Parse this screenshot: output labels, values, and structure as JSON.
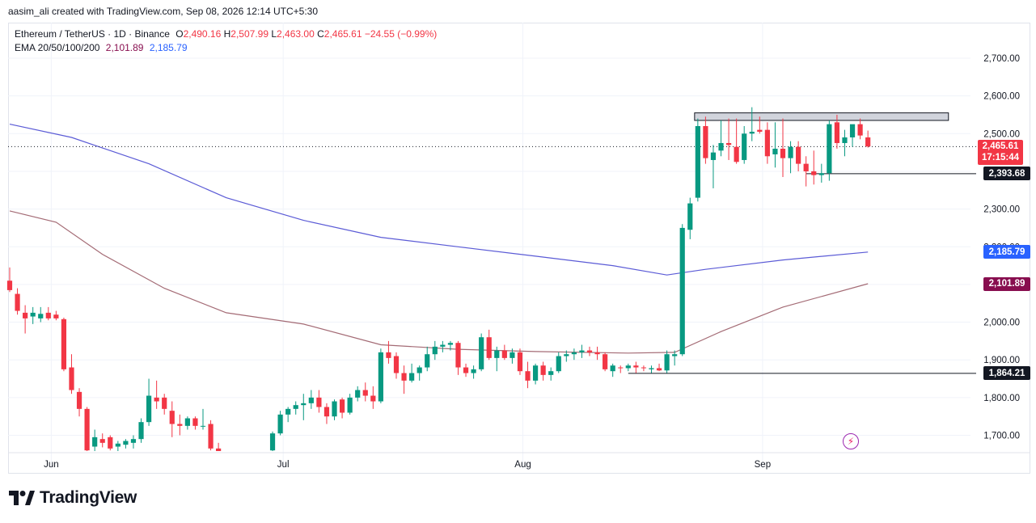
{
  "header": {
    "credit": "aasim_ali created with TradingView.com, Sep 08, 2026 12:14 UTC+5:30"
  },
  "legend": {
    "symbol": "Ethereum / TetherUS · 1D · Binance",
    "o_label": "O",
    "o_value": "2,490.16",
    "h_label": "H",
    "h_value": "2,507.99",
    "l_label": "L",
    "l_value": "2,463.00",
    "c_label": "C",
    "c_value": "2,465.61",
    "change": "−24.55 (−0.99%)",
    "ema_label": "EMA 20/50/100/200",
    "ema_value_1": "2,101.89",
    "ema_value_2": "2,185.79"
  },
  "price_tags": {
    "last_price": "2,465.61",
    "countdown": "17:15:44",
    "support_level": "2,393.68",
    "ema_blue": "2,185.79",
    "ema_maroon": "2,101.89",
    "lower_level": "1,864.21"
  },
  "logo": {
    "text": "TradingView"
  },
  "colors": {
    "up": "#089981",
    "down": "#f23645",
    "ema_long": "#5b5bd6",
    "ema_short": "#a46b75",
    "tag_blue": "#2962ff",
    "tag_maroon": "#880e4f",
    "tag_black": "#131722",
    "grid": "#f0f3fa"
  },
  "chart_data": {
    "type": "candlestick",
    "title": "Ethereum / TetherUS · 1D · Binance",
    "y_ticks": [
      1700,
      1800,
      1900,
      2000,
      2100,
      2200,
      2300,
      2400,
      2500,
      2600,
      2700
    ],
    "y_tick_labels": [
      "1,700.00",
      "1,800.00",
      "1,900.00",
      "2,000.00",
      "",
      "2,200.00",
      "2,300.00",
      "",
      "2,500.00",
      "2,600.00",
      "2,700.00"
    ],
    "ylim": [
      1655,
      2765
    ],
    "x_labels": [
      {
        "label": "Jun",
        "day": 6
      },
      {
        "label": "Jul",
        "day": 36
      },
      {
        "label": "Aug",
        "day": 67
      },
      {
        "label": "Sep",
        "day": 98
      }
    ],
    "candles": [
      {
        "d": 0,
        "o": 2110,
        "h": 2145,
        "l": 2080,
        "c": 2085
      },
      {
        "d": 1,
        "o": 2075,
        "h": 2090,
        "l": 2020,
        "c": 2030
      },
      {
        "d": 2,
        "o": 2025,
        "h": 2045,
        "l": 1970,
        "c": 2010
      },
      {
        "d": 3,
        "o": 2015,
        "h": 2040,
        "l": 1995,
        "c": 2025
      },
      {
        "d": 4,
        "o": 2010,
        "h": 2040,
        "l": 2000,
        "c": 2022
      },
      {
        "d": 5,
        "o": 2025,
        "h": 2040,
        "l": 2005,
        "c": 2010
      },
      {
        "d": 6,
        "o": 2020,
        "h": 2030,
        "l": 2005,
        "c": 2010
      },
      {
        "d": 7,
        "o": 2008,
        "h": 2012,
        "l": 1870,
        "c": 1875
      },
      {
        "d": 8,
        "o": 1880,
        "h": 1915,
        "l": 1810,
        "c": 1820
      },
      {
        "d": 9,
        "o": 1815,
        "h": 1825,
        "l": 1750,
        "c": 1770
      },
      {
        "d": 10,
        "o": 1770,
        "h": 1775,
        "l": 1655,
        "c": 1660
      },
      {
        "d": 11,
        "o": 1670,
        "h": 1715,
        "l": 1655,
        "c": 1695
      },
      {
        "d": 12,
        "o": 1690,
        "h": 1705,
        "l": 1668,
        "c": 1680
      },
      {
        "d": 13,
        "o": 1695,
        "h": 1700,
        "l": 1660,
        "c": 1665
      },
      {
        "d": 14,
        "o": 1670,
        "h": 1685,
        "l": 1650,
        "c": 1678
      },
      {
        "d": 15,
        "o": 1675,
        "h": 1690,
        "l": 1665,
        "c": 1685
      },
      {
        "d": 16,
        "o": 1680,
        "h": 1700,
        "l": 1665,
        "c": 1690
      },
      {
        "d": 17,
        "o": 1690,
        "h": 1745,
        "l": 1680,
        "c": 1735
      },
      {
        "d": 18,
        "o": 1735,
        "h": 1850,
        "l": 1725,
        "c": 1805
      },
      {
        "d": 19,
        "o": 1800,
        "h": 1845,
        "l": 1770,
        "c": 1790
      },
      {
        "d": 20,
        "o": 1800,
        "h": 1810,
        "l": 1755,
        "c": 1770
      },
      {
        "d": 21,
        "o": 1765,
        "h": 1790,
        "l": 1695,
        "c": 1730
      },
      {
        "d": 22,
        "o": 1730,
        "h": 1755,
        "l": 1700,
        "c": 1725
      },
      {
        "d": 23,
        "o": 1725,
        "h": 1750,
        "l": 1715,
        "c": 1745
      },
      {
        "d": 24,
        "o": 1745,
        "h": 1750,
        "l": 1715,
        "c": 1725
      },
      {
        "d": 25,
        "o": 1725,
        "h": 1770,
        "l": 1715,
        "c": 1725
      },
      {
        "d": 26,
        "o": 1730,
        "h": 1740,
        "l": 1660,
        "c": 1665
      },
      {
        "d": 27,
        "o": 1665,
        "h": 1680,
        "l": 1655,
        "c": 1658
      },
      {
        "d": 34,
        "o": 1660,
        "h": 1710,
        "l": 1658,
        "c": 1705
      },
      {
        "d": 35,
        "o": 1705,
        "h": 1765,
        "l": 1700,
        "c": 1755
      },
      {
        "d": 36,
        "o": 1755,
        "h": 1775,
        "l": 1735,
        "c": 1770
      },
      {
        "d": 37,
        "o": 1770,
        "h": 1790,
        "l": 1755,
        "c": 1780
      },
      {
        "d": 38,
        "o": 1780,
        "h": 1810,
        "l": 1740,
        "c": 1785
      },
      {
        "d": 39,
        "o": 1785,
        "h": 1820,
        "l": 1770,
        "c": 1800
      },
      {
        "d": 40,
        "o": 1800,
        "h": 1820,
        "l": 1760,
        "c": 1775
      },
      {
        "d": 41,
        "o": 1775,
        "h": 1785,
        "l": 1730,
        "c": 1750
      },
      {
        "d": 42,
        "o": 1750,
        "h": 1795,
        "l": 1740,
        "c": 1790
      },
      {
        "d": 43,
        "o": 1795,
        "h": 1800,
        "l": 1745,
        "c": 1760
      },
      {
        "d": 44,
        "o": 1760,
        "h": 1810,
        "l": 1755,
        "c": 1800
      },
      {
        "d": 45,
        "o": 1800,
        "h": 1830,
        "l": 1790,
        "c": 1820
      },
      {
        "d": 46,
        "o": 1820,
        "h": 1840,
        "l": 1790,
        "c": 1805
      },
      {
        "d": 47,
        "o": 1805,
        "h": 1830,
        "l": 1770,
        "c": 1790
      },
      {
        "d": 48,
        "o": 1790,
        "h": 1930,
        "l": 1785,
        "c": 1920
      },
      {
        "d": 49,
        "o": 1920,
        "h": 1950,
        "l": 1890,
        "c": 1905
      },
      {
        "d": 50,
        "o": 1910,
        "h": 1920,
        "l": 1850,
        "c": 1865
      },
      {
        "d": 51,
        "o": 1865,
        "h": 1885,
        "l": 1810,
        "c": 1845
      },
      {
        "d": 52,
        "o": 1845,
        "h": 1890,
        "l": 1840,
        "c": 1865
      },
      {
        "d": 53,
        "o": 1865,
        "h": 1885,
        "l": 1845,
        "c": 1880
      },
      {
        "d": 54,
        "o": 1880,
        "h": 1935,
        "l": 1870,
        "c": 1915
      },
      {
        "d": 55,
        "o": 1915,
        "h": 1950,
        "l": 1900,
        "c": 1935
      },
      {
        "d": 56,
        "o": 1935,
        "h": 1950,
        "l": 1920,
        "c": 1940
      },
      {
        "d": 57,
        "o": 1940,
        "h": 1950,
        "l": 1925,
        "c": 1945
      },
      {
        "d": 58,
        "o": 1945,
        "h": 1950,
        "l": 1860,
        "c": 1880
      },
      {
        "d": 59,
        "o": 1880,
        "h": 1890,
        "l": 1855,
        "c": 1865
      },
      {
        "d": 60,
        "o": 1865,
        "h": 1885,
        "l": 1850,
        "c": 1875
      },
      {
        "d": 61,
        "o": 1875,
        "h": 1970,
        "l": 1870,
        "c": 1960
      },
      {
        "d": 62,
        "o": 1960,
        "h": 1980,
        "l": 1900,
        "c": 1905
      },
      {
        "d": 63,
        "o": 1905,
        "h": 1935,
        "l": 1870,
        "c": 1925
      },
      {
        "d": 64,
        "o": 1925,
        "h": 1940,
        "l": 1900,
        "c": 1905
      },
      {
        "d": 65,
        "o": 1905,
        "h": 1930,
        "l": 1890,
        "c": 1920
      },
      {
        "d": 66,
        "o": 1920,
        "h": 1930,
        "l": 1860,
        "c": 1870
      },
      {
        "d": 67,
        "o": 1870,
        "h": 1895,
        "l": 1825,
        "c": 1845
      },
      {
        "d": 68,
        "o": 1845,
        "h": 1890,
        "l": 1835,
        "c": 1885
      },
      {
        "d": 69,
        "o": 1885,
        "h": 1895,
        "l": 1845,
        "c": 1860
      },
      {
        "d": 70,
        "o": 1860,
        "h": 1880,
        "l": 1845,
        "c": 1870
      },
      {
        "d": 71,
        "o": 1870,
        "h": 1920,
        "l": 1865,
        "c": 1910
      },
      {
        "d": 72,
        "o": 1910,
        "h": 1925,
        "l": 1895,
        "c": 1915
      },
      {
        "d": 73,
        "o": 1915,
        "h": 1930,
        "l": 1900,
        "c": 1920
      },
      {
        "d": 74,
        "o": 1920,
        "h": 1940,
        "l": 1905,
        "c": 1925
      },
      {
        "d": 75,
        "o": 1925,
        "h": 1935,
        "l": 1910,
        "c": 1920
      },
      {
        "d": 76,
        "o": 1920,
        "h": 1935,
        "l": 1900,
        "c": 1915
      },
      {
        "d": 77,
        "o": 1915,
        "h": 1920,
        "l": 1870,
        "c": 1875
      },
      {
        "d": 78,
        "o": 1870,
        "h": 1890,
        "l": 1855,
        "c": 1885
      },
      {
        "d": 79,
        "o": 1880,
        "h": 1885,
        "l": 1865,
        "c": 1878
      },
      {
        "d": 80,
        "o": 1878,
        "h": 1890,
        "l": 1870,
        "c": 1885
      },
      {
        "d": 81,
        "o": 1885,
        "h": 1895,
        "l": 1865,
        "c": 1880
      },
      {
        "d": 82,
        "o": 1880,
        "h": 1885,
        "l": 1870,
        "c": 1878
      },
      {
        "d": 83,
        "o": 1875,
        "h": 1885,
        "l": 1865,
        "c": 1878
      },
      {
        "d": 84,
        "o": 1878,
        "h": 1890,
        "l": 1870,
        "c": 1872
      },
      {
        "d": 85,
        "o": 1872,
        "h": 1925,
        "l": 1865,
        "c": 1915
      },
      {
        "d": 86,
        "o": 1910,
        "h": 1925,
        "l": 1885,
        "c": 1915
      },
      {
        "d": 87,
        "o": 1915,
        "h": 2260,
        "l": 1910,
        "c": 2250
      },
      {
        "d": 88,
        "o": 2245,
        "h": 2330,
        "l": 2220,
        "c": 2315
      },
      {
        "d": 89,
        "o": 2330,
        "h": 2540,
        "l": 2320,
        "c": 2520
      },
      {
        "d": 90,
        "o": 2520,
        "h": 2545,
        "l": 2420,
        "c": 2435
      },
      {
        "d": 91,
        "o": 2430,
        "h": 2470,
        "l": 2355,
        "c": 2450
      },
      {
        "d": 92,
        "o": 2455,
        "h": 2535,
        "l": 2440,
        "c": 2475
      },
      {
        "d": 93,
        "o": 2475,
        "h": 2540,
        "l": 2430,
        "c": 2470
      },
      {
        "d": 94,
        "o": 2465,
        "h": 2540,
        "l": 2420,
        "c": 2425
      },
      {
        "d": 95,
        "o": 2430,
        "h": 2520,
        "l": 2420,
        "c": 2500
      },
      {
        "d": 96,
        "o": 2500,
        "h": 2570,
        "l": 2480,
        "c": 2505
      },
      {
        "d": 97,
        "o": 2510,
        "h": 2545,
        "l": 2500,
        "c": 2505
      },
      {
        "d": 98,
        "o": 2510,
        "h": 2530,
        "l": 2420,
        "c": 2440
      },
      {
        "d": 99,
        "o": 2445,
        "h": 2530,
        "l": 2410,
        "c": 2460
      },
      {
        "d": 100,
        "o": 2460,
        "h": 2540,
        "l": 2385,
        "c": 2435
      },
      {
        "d": 101,
        "o": 2435,
        "h": 2480,
        "l": 2395,
        "c": 2465
      },
      {
        "d": 102,
        "o": 2465,
        "h": 2480,
        "l": 2400,
        "c": 2420
      },
      {
        "d": 103,
        "o": 2420,
        "h": 2440,
        "l": 2360,
        "c": 2400
      },
      {
        "d": 104,
        "o": 2400,
        "h": 2455,
        "l": 2365,
        "c": 2390
      },
      {
        "d": 105,
        "o": 2390,
        "h": 2420,
        "l": 2370,
        "c": 2395
      },
      {
        "d": 106,
        "o": 2395,
        "h": 2535,
        "l": 2375,
        "c": 2525
      },
      {
        "d": 107,
        "o": 2530,
        "h": 2550,
        "l": 2460,
        "c": 2475
      },
      {
        "d": 108,
        "o": 2475,
        "h": 2510,
        "l": 2440,
        "c": 2490
      },
      {
        "d": 109,
        "o": 2490,
        "h": 2520,
        "l": 2465,
        "c": 2525
      },
      {
        "d": 110,
        "o": 2525,
        "h": 2540,
        "l": 2485,
        "c": 2495
      },
      {
        "d": 111,
        "o": 2490,
        "h": 2508,
        "l": 2463,
        "c": 2466
      }
    ],
    "ema_long": [
      [
        0,
        2525
      ],
      [
        8,
        2490
      ],
      [
        18,
        2420
      ],
      [
        28,
        2330
      ],
      [
        38,
        2270
      ],
      [
        48,
        2225
      ],
      [
        58,
        2200
      ],
      [
        68,
        2175
      ],
      [
        78,
        2150
      ],
      [
        85,
        2125
      ],
      [
        90,
        2140
      ],
      [
        100,
        2165
      ],
      [
        111,
        2186
      ]
    ],
    "ema_short": [
      [
        0,
        2295
      ],
      [
        6,
        2265
      ],
      [
        12,
        2180
      ],
      [
        20,
        2090
      ],
      [
        28,
        2025
      ],
      [
        38,
        1995
      ],
      [
        48,
        1940
      ],
      [
        58,
        1928
      ],
      [
        68,
        1922
      ],
      [
        80,
        1918
      ],
      [
        86,
        1920
      ],
      [
        92,
        1975
      ],
      [
        100,
        2040
      ],
      [
        111,
        2102
      ]
    ],
    "levels": [
      {
        "value": 2393.68,
        "from_day": 103,
        "to_day": 125
      },
      {
        "value": 1864.21,
        "from_day": 80,
        "to_day": 130
      }
    ],
    "resistance_box": {
      "y_low": 2535,
      "y_high": 2555,
      "from_day": 89,
      "to_day": 121
    },
    "last_price": 2465.61
  }
}
